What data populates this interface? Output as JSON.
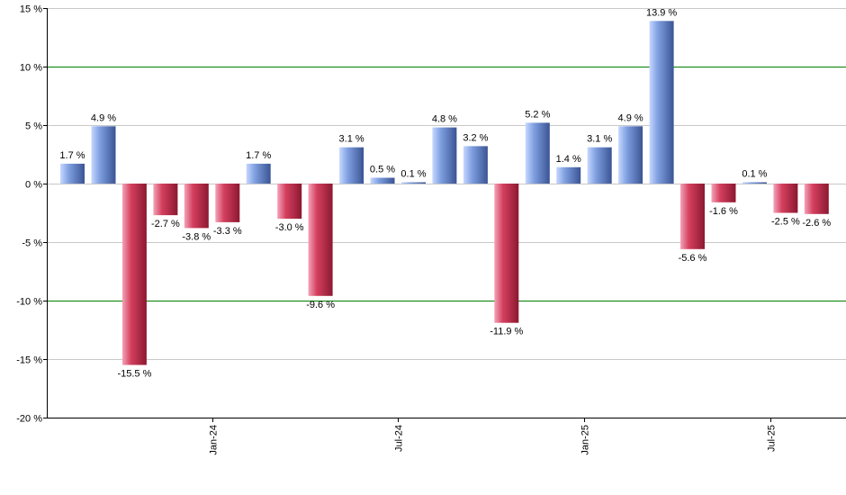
{
  "chart_data": {
    "type": "bar",
    "y_unit_suffix": " %",
    "ylim": [
      -20,
      15
    ],
    "y_ticks": [
      15,
      10,
      5,
      0,
      -5,
      -10,
      -15,
      -20
    ],
    "highlight_lines": [
      10,
      -10
    ],
    "grid": true,
    "values": [
      1.7,
      4.9,
      -15.5,
      -2.7,
      -3.8,
      -3.3,
      1.7,
      -3.0,
      -9.6,
      3.1,
      0.5,
      0.1,
      4.8,
      3.2,
      -11.9,
      5.2,
      1.4,
      3.1,
      4.9,
      13.9,
      -5.6,
      -1.6,
      0.1,
      -2.5,
      -2.6
    ],
    "labels": [
      "1.7 %",
      "4.9 %",
      "-15.5 %",
      "-2.7 %",
      "-3.8 %",
      "-3.3 %",
      "1.7 %",
      "-3.0 %",
      "-9.6 %",
      "3.1 %",
      "0.5 %",
      "0.1 %",
      "4.8 %",
      "3.2 %",
      "-11.9 %",
      "5.2 %",
      "1.4 %",
      "3.1 %",
      "4.9 %",
      "13.9 %",
      "-5.6 %",
      "-1.6 %",
      "0.1 %",
      "-2.5 %",
      "-2.6 %"
    ],
    "x_ticks": [
      {
        "label": "Jan-24",
        "after_bar_index": 4
      },
      {
        "label": "Jul-24",
        "after_bar_index": 10
      },
      {
        "label": "Jan-25",
        "after_bar_index": 16
      },
      {
        "label": "Jul-25",
        "after_bar_index": 22
      }
    ],
    "colors": {
      "positive_light": "#c6d8ff",
      "positive_mid": "#7f9fe0",
      "positive_dark": "#3a5494",
      "negative_light": "#f3a4b8",
      "negative_mid": "#d4405f",
      "negative_dark": "#8c1830",
      "grid": "#c8c8c8",
      "highlight": "#008000",
      "axis": "#000000"
    }
  }
}
